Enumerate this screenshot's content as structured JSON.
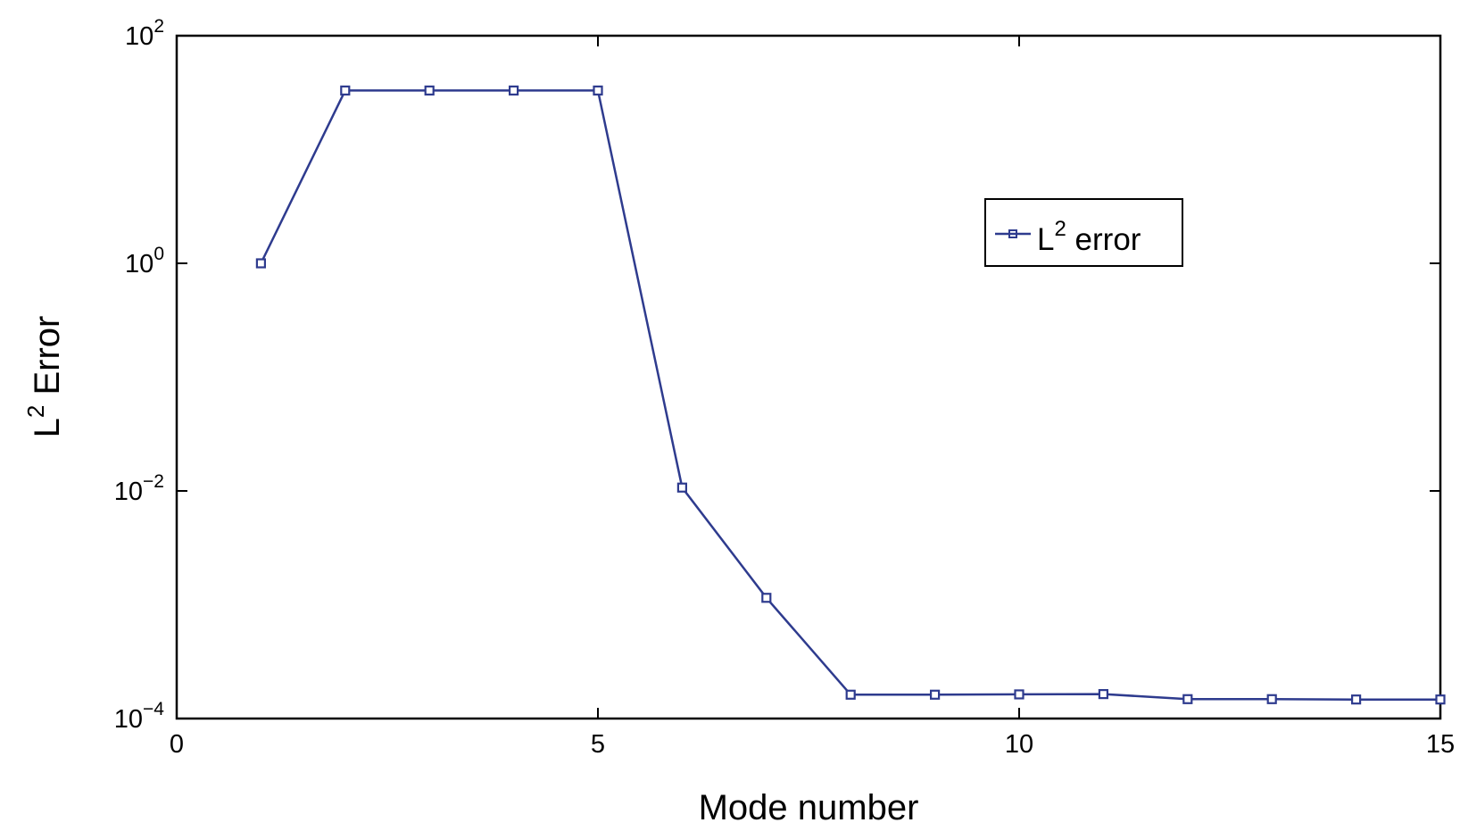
{
  "chart_data": {
    "type": "line",
    "xlabel": "Mode number",
    "ylabel": {
      "base": "L",
      "sup": "2",
      "text": " Error"
    },
    "xlim": [
      0,
      15
    ],
    "ylim": [
      0.0001,
      100
    ],
    "yscale": "log",
    "x_ticks": [
      0,
      5,
      10,
      15
    ],
    "y_ticks": [
      {
        "value": 0.01,
        "base": "10",
        "exp": "−2"
      },
      {
        "value": 1,
        "base": "10",
        "exp": "0"
      },
      {
        "value": 100,
        "base": "10",
        "exp": "2"
      },
      {
        "value": 0.0001,
        "base": "10",
        "exp": "−4"
      }
    ],
    "grid": false,
    "legend": {
      "placement": "upper-right",
      "base": "L",
      "sup": "2",
      "text": " error"
    },
    "series": [
      {
        "name": "L2 error",
        "color": "#2e3b8e",
        "marker": "square",
        "x": [
          1,
          2,
          3,
          4,
          5,
          6,
          7,
          8,
          9,
          10,
          11,
          12,
          13,
          14,
          15
        ],
        "y": [
          1,
          33,
          33,
          33,
          33,
          0.0107,
          0.00115,
          0.000162,
          0.000162,
          0.000163,
          0.000164,
          0.000148,
          0.000148,
          0.000147,
          0.000147
        ]
      }
    ]
  }
}
